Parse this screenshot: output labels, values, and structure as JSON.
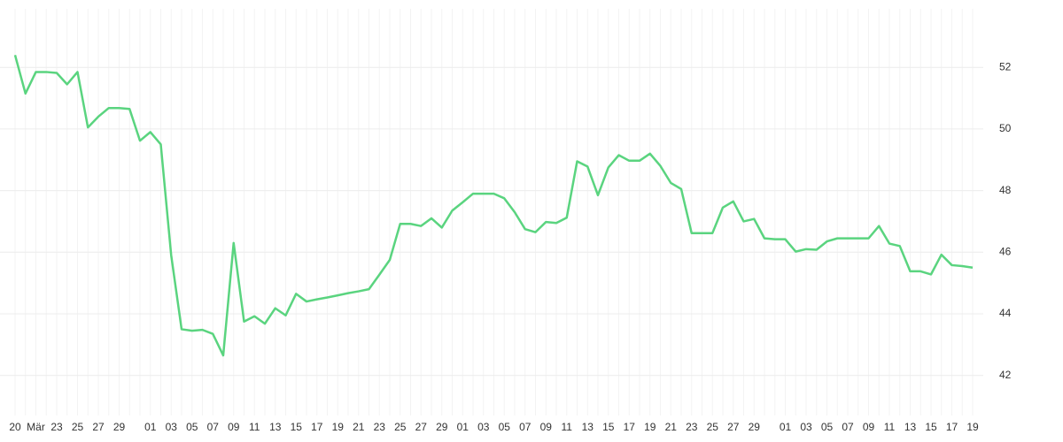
{
  "chart_data": {
    "type": "line",
    "categories": [
      "20",
      null,
      "Mär",
      null,
      "23",
      null,
      "25",
      null,
      "27",
      null,
      "29",
      null,
      null,
      "01",
      null,
      "03",
      null,
      "05",
      null,
      "07",
      null,
      "09",
      null,
      "11",
      null,
      "13",
      null,
      "15",
      null,
      "17",
      null,
      "19",
      null,
      "21",
      null,
      "23",
      null,
      "25",
      null,
      "27",
      null,
      "29",
      null,
      "01",
      null,
      "03",
      null,
      "05",
      null,
      "07",
      null,
      "09",
      null,
      "11",
      null,
      "13",
      null,
      "15",
      null,
      "17",
      null,
      "19",
      null,
      "21",
      null,
      "23",
      null,
      "25",
      null,
      "27",
      null,
      "29",
      null,
      null,
      "01",
      null,
      "03",
      null,
      "05",
      null,
      "07",
      null,
      "09",
      null,
      "11",
      null,
      "13",
      null,
      "15",
      null,
      "17",
      null,
      "19"
    ],
    "series": [
      {
        "color": "#5ad47f",
        "values": [
          52.4,
          51.15,
          51.85,
          51.85,
          51.82,
          51.45,
          51.85,
          50.05,
          50.4,
          50.68,
          50.68,
          50.65,
          49.62,
          49.9,
          49.5,
          45.9,
          43.5,
          43.45,
          43.48,
          43.35,
          42.65,
          46.3,
          43.75,
          43.92,
          43.68,
          44.18,
          43.95,
          44.65,
          44.4,
          44.47,
          44.53,
          44.6,
          44.67,
          44.73,
          44.8,
          45.27,
          45.75,
          46.92,
          46.92,
          46.85,
          47.1,
          46.8,
          47.35,
          47.62,
          47.9,
          47.9,
          47.9,
          47.75,
          47.3,
          46.75,
          46.65,
          46.98,
          46.95,
          47.12,
          48.95,
          48.78,
          47.85,
          48.75,
          49.15,
          48.97,
          48.97,
          49.2,
          48.8,
          48.25,
          48.05,
          46.62,
          46.62,
          46.62,
          47.45,
          47.65,
          47.0,
          47.08,
          46.45,
          46.42,
          46.42,
          46.02,
          46.1,
          46.08,
          46.35,
          46.45,
          46.45,
          46.45,
          46.45,
          46.85,
          46.28,
          46.2,
          45.38,
          45.38,
          45.28,
          45.92,
          45.58,
          45.55,
          45.5
        ]
      }
    ],
    "ylim": [
      40.7,
      53.9
    ],
    "yticks": [
      42,
      44,
      46,
      48,
      50,
      52
    ],
    "grid": true
  }
}
